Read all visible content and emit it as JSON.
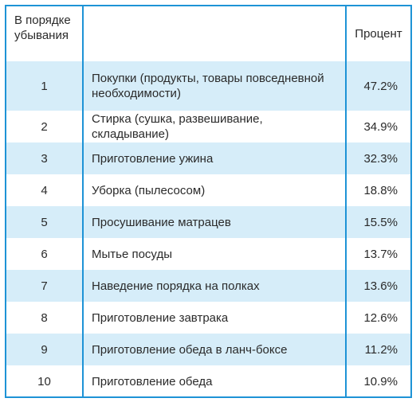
{
  "header": {
    "rank_label": "В порядке убывания",
    "task_label": "",
    "percent_label": "Процент"
  },
  "rows": [
    {
      "rank": "1",
      "task": "Покупки (продукты, товары повседневной необходимости)",
      "percent": "47.2%"
    },
    {
      "rank": "2",
      "task": "Стирка (сушка, развешивание, складывание)",
      "percent": "34.9%"
    },
    {
      "rank": "3",
      "task": "Приготовление ужина",
      "percent": "32.3%"
    },
    {
      "rank": "4",
      "task": "Уборка (пылесосом)",
      "percent": "18.8%"
    },
    {
      "rank": "5",
      "task": "Просушивание матрацев",
      "percent": "15.5%"
    },
    {
      "rank": "6",
      "task": "Мытье посуды",
      "percent": "13.7%"
    },
    {
      "rank": "7",
      "task": "Наведение порядка на полках",
      "percent": "13.6%"
    },
    {
      "rank": "8",
      "task": "Приготовление завтрака",
      "percent": "12.6%"
    },
    {
      "rank": "9",
      "task": "Приготовление обеда в ланч-боксе",
      "percent": "11.2%"
    },
    {
      "rank": "10",
      "task": "Приготовление обеда",
      "percent": "10.9%"
    }
  ],
  "colors": {
    "border": "#1e93d6",
    "shaded_row": "#d6edf9",
    "text": "#2a2a2a"
  }
}
